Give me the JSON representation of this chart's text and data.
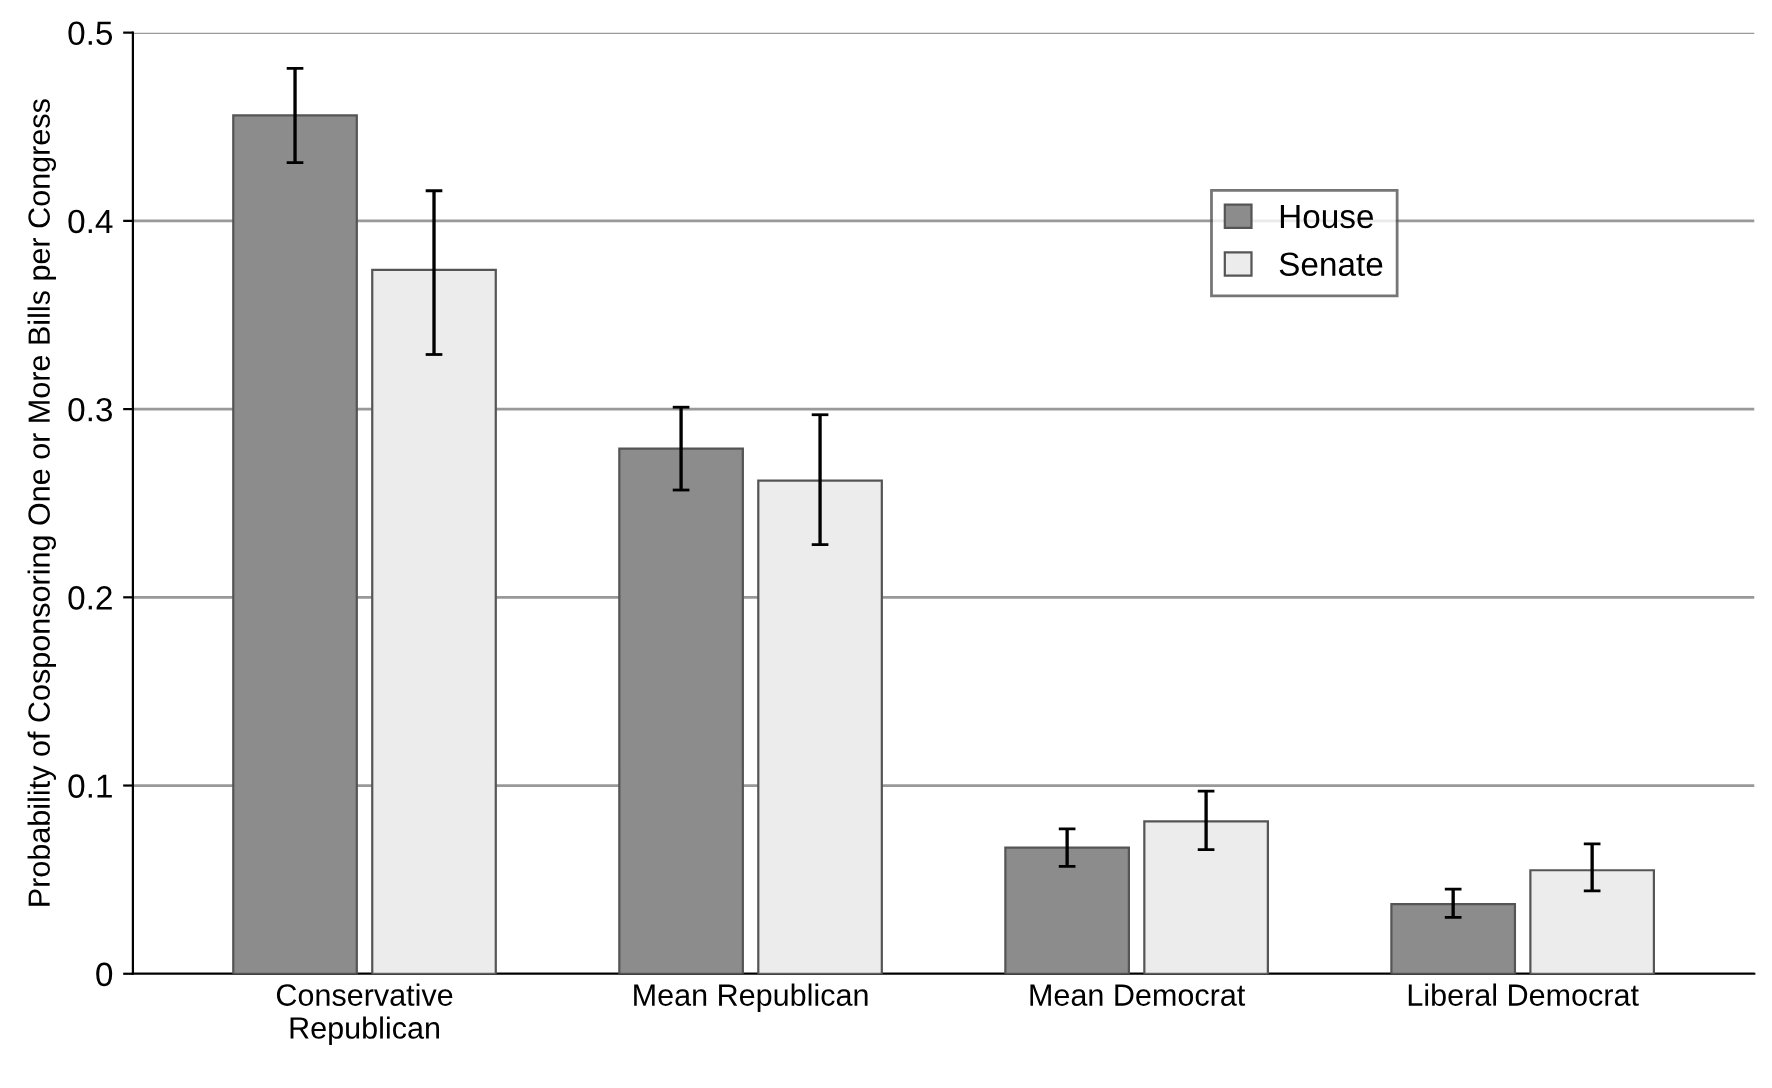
{
  "chart_data": {
    "type": "bar",
    "ylabel": "Probability of Cosponsoring One or More Bills per Congress",
    "categories": [
      "Conservative\nRepublican",
      "Mean Republican",
      "Mean Democrat",
      "Liberal Democrat"
    ],
    "series": [
      {
        "name": "House",
        "color": "#8c8c8c",
        "values": [
          0.456,
          0.279,
          0.067,
          0.037
        ],
        "errors": [
          [
            0.431,
            0.481
          ],
          [
            0.257,
            0.301
          ],
          [
            0.057,
            0.077
          ],
          [
            0.03,
            0.045
          ]
        ]
      },
      {
        "name": "Senate",
        "color": "#ececec",
        "values": [
          0.374,
          0.262,
          0.081,
          0.055
        ],
        "errors": [
          [
            0.329,
            0.416
          ],
          [
            0.228,
            0.297
          ],
          [
            0.066,
            0.097
          ],
          [
            0.044,
            0.069
          ]
        ]
      }
    ],
    "ylim": [
      0,
      0.5
    ],
    "yticks": [
      {
        "value": 0,
        "label": "0"
      },
      0.1,
      0.2,
      0.3,
      0.4,
      0.5
    ],
    "grid": "y",
    "legend": "top right"
  }
}
